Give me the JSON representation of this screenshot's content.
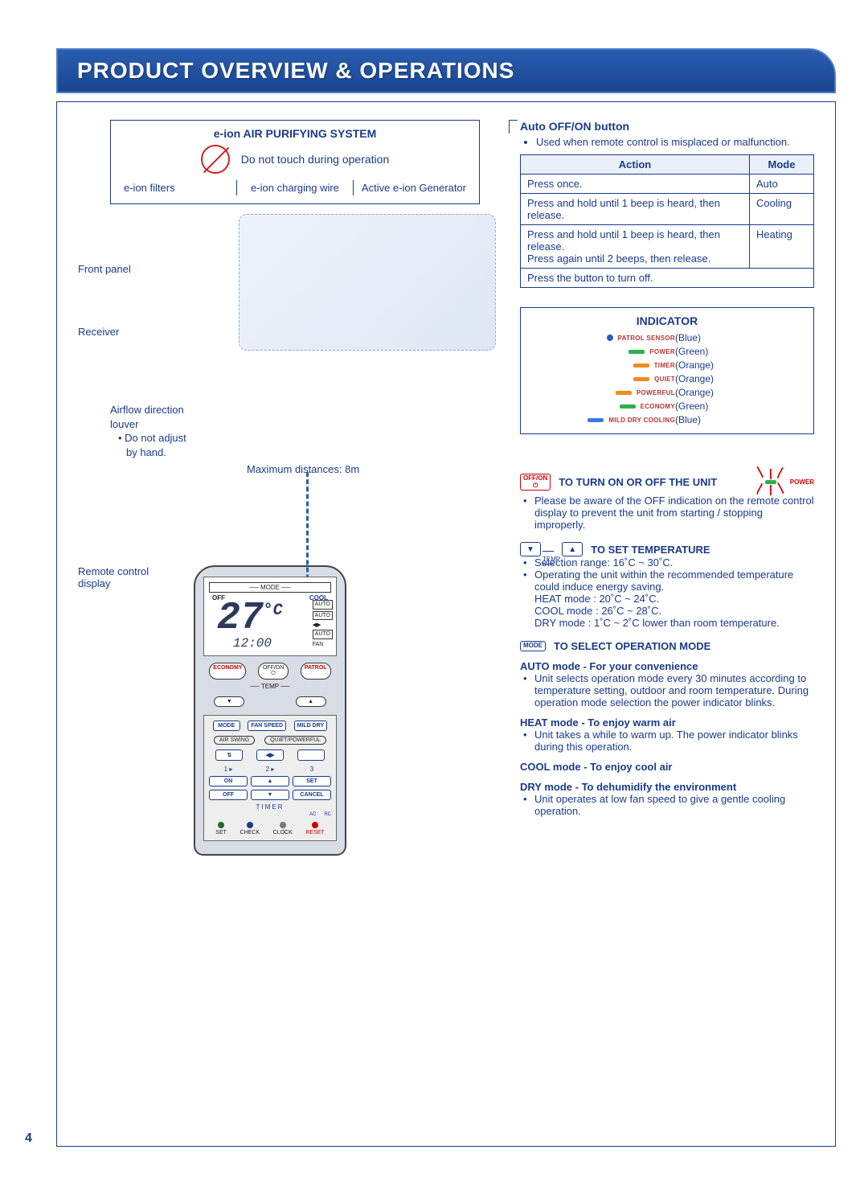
{
  "page": {
    "title": "PRODUCT OVERVIEW & OPERATIONS",
    "number": "4",
    "colors": {
      "primary": "#1a3a8a",
      "accent_red": "#c00000",
      "bg": "#ffffff"
    }
  },
  "eion": {
    "title": "e-ion AIR PURIFYING SYSTEM",
    "warning": "Do not touch during operation",
    "cols": [
      "e-ion filters",
      "e-ion charging wire",
      "Active e-ion Generator"
    ]
  },
  "unit_labels": {
    "front_panel": "Front panel",
    "receiver": "Receiver",
    "louver_l1": "Airflow direction",
    "louver_l2": "louver",
    "louver_note_l1": "Do not adjust",
    "louver_note_l2": "by hand.",
    "max_dist": "Maximum distances: 8m",
    "remote_display_l1": "Remote control",
    "remote_display_l2": "display"
  },
  "auto_off_on": {
    "title": "Auto OFF/ON button",
    "desc": "Used when remote control is misplaced or malfunction.",
    "headers": {
      "action": "Action",
      "mode": "Mode"
    },
    "rows": [
      {
        "action": "Press once.",
        "mode": "Auto"
      },
      {
        "action": "Press and hold until 1 beep is heard, then release.",
        "mode": "Cooling"
      },
      {
        "action": "Press and hold until 1 beep is heard, then release.\nPress again until 2 beeps, then release.",
        "mode": "Heating"
      },
      {
        "action": "Press the button to turn off.",
        "mode": ""
      }
    ]
  },
  "indicator": {
    "title": "INDICATOR",
    "rows": [
      {
        "name": "PATROL SENSOR",
        "type": "sensor",
        "label": "(Blue)"
      },
      {
        "name": "POWER",
        "color": "#2cb04a",
        "label": "(Green)"
      },
      {
        "name": "TIMER",
        "color": "#f08c1e",
        "label": "(Orange)"
      },
      {
        "name": "QUIET",
        "color": "#f08c1e",
        "label": "(Orange)"
      },
      {
        "name": "POWERFUL",
        "color": "#f08c1e",
        "label": "(Orange)"
      },
      {
        "name": "ECONOMY",
        "color": "#2cb04a",
        "label": "(Green)"
      },
      {
        "name": "MILD DRY COOLING",
        "color": "#3a7adf",
        "label": "(Blue)"
      }
    ]
  },
  "remote": {
    "mode_label": "MODE",
    "off": "OFF",
    "cool": "COOL",
    "auto": "AUTO",
    "fan": "FAN",
    "temp_value": "27",
    "temp_unit": "°C",
    "time_value": "12:00",
    "economy": "ECONOMY",
    "offon": "OFF/ON",
    "patrol": "PATROL",
    "temp_label": "TEMP",
    "mode_btn": "MODE",
    "fanspeed_btn": "FAN SPEED",
    "milddry_btn": "MILD DRY",
    "airswing": "AIR SWING",
    "quietpower": "QUIET/POWERFUL",
    "on": "ON",
    "set": "SET",
    "off2": "OFF",
    "cancel": "CANCEL",
    "timer": "TIMER",
    "bottom": {
      "set": "SET",
      "check": "CHECK",
      "clock": "CLOCK",
      "reset": "RESET",
      "ac": "AC",
      "rc": "RC"
    }
  },
  "ops": {
    "turn_on": {
      "btn_l1": "OFF/ON",
      "title": "TO TURN ON OR OFF THE UNIT",
      "power_label": "POWER",
      "note": "Please be aware of the OFF indication on the remote control display to prevent the unit from starting / stopping improperly."
    },
    "set_temp": {
      "label": "TEMP",
      "title": "TO SET TEMPERATURE",
      "bullets": [
        "Selection range: 16˚C ~ 30˚C.",
        "Operating the unit within the recommended temperature could induce energy saving."
      ],
      "lines": [
        "HEAT mode : 20˚C ~ 24˚C.",
        "COOL mode : 26˚C ~ 28˚C.",
        "DRY mode : 1˚C ~ 2˚C lower than room temperature."
      ]
    },
    "select_mode": {
      "btn": "MODE",
      "title": "TO SELECT OPERATION MODE",
      "auto": {
        "heading": "AUTO mode - For your convenience",
        "bullet": "Unit selects operation mode every 30 minutes according to temperature setting, outdoor and room temperature. During operation mode selection the power indicator blinks."
      },
      "heat": {
        "heading": "HEAT mode - To enjoy warm air",
        "bullet": "Unit takes a while to warm up. The power indicator blinks during this operation."
      },
      "cool": {
        "heading": "COOL mode - To enjoy cool air"
      },
      "dry": {
        "heading": "DRY mode - To dehumidify the environment",
        "bullet": "Unit operates at low fan speed to give a gentle cooling operation."
      }
    }
  }
}
